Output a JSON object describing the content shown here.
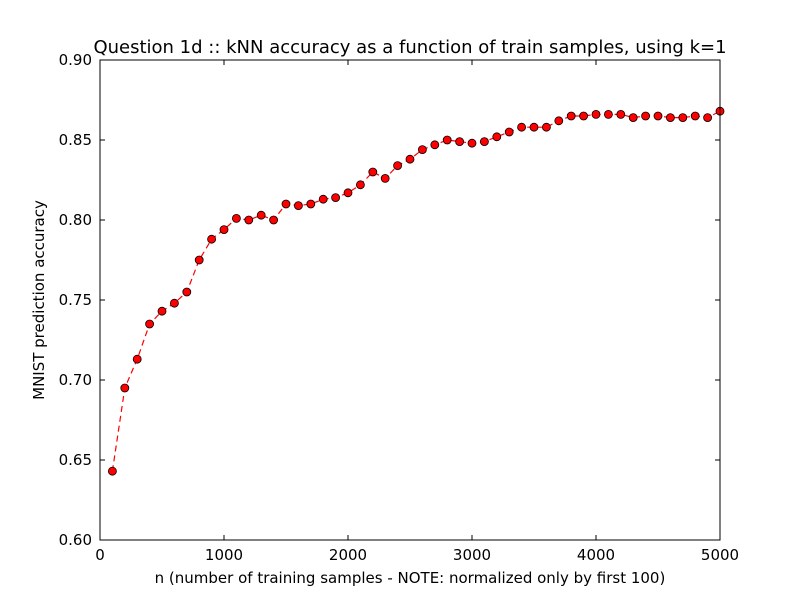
{
  "chart_data": {
    "type": "line",
    "title": "Question 1d :: kNN accuracy as a function of train samples, using k=1",
    "xlabel": "n (number of training samples - NOTE: normalized only by first 100)",
    "ylabel": "MNIST prediction accuracy",
    "xlim": [
      0,
      5000
    ],
    "ylim": [
      0.6,
      0.9
    ],
    "grid": false,
    "legend": "none",
    "x_ticks": [
      "0",
      "1000",
      "2000",
      "3000",
      "4000",
      "5000"
    ],
    "y_ticks": [
      "0.60",
      "0.65",
      "0.70",
      "0.75",
      "0.80",
      "0.85",
      "0.90"
    ],
    "line_style": "dashed",
    "colors": {
      "line": "#ff0000",
      "marker_fill": "#ff0000",
      "marker_edge": "#000000"
    },
    "series": [
      {
        "x": [
          100,
          200,
          300,
          400,
          500,
          600,
          700,
          800,
          900,
          1000,
          1100,
          1200,
          1300,
          1400,
          1500,
          1600,
          1700,
          1800,
          1900,
          2000,
          2100,
          2200,
          2300,
          2400,
          2500,
          2600,
          2700,
          2800,
          2900,
          3000,
          3100,
          3200,
          3300,
          3400,
          3500,
          3600,
          3700,
          3800,
          3900,
          4000,
          4100,
          4200,
          4300,
          4400,
          4500,
          4600,
          4700,
          4800,
          4900,
          5000
        ],
        "values": [
          0.643,
          0.695,
          0.713,
          0.735,
          0.743,
          0.748,
          0.755,
          0.775,
          0.788,
          0.794,
          0.801,
          0.8,
          0.803,
          0.8,
          0.81,
          0.809,
          0.81,
          0.813,
          0.814,
          0.817,
          0.822,
          0.83,
          0.826,
          0.834,
          0.838,
          0.844,
          0.847,
          0.85,
          0.849,
          0.848,
          0.849,
          0.852,
          0.855,
          0.858,
          0.858,
          0.858,
          0.862,
          0.865,
          0.865,
          0.866,
          0.866,
          0.866,
          0.864,
          0.865,
          0.865,
          0.864,
          0.864,
          0.865,
          0.864,
          0.868
        ]
      }
    ]
  }
}
